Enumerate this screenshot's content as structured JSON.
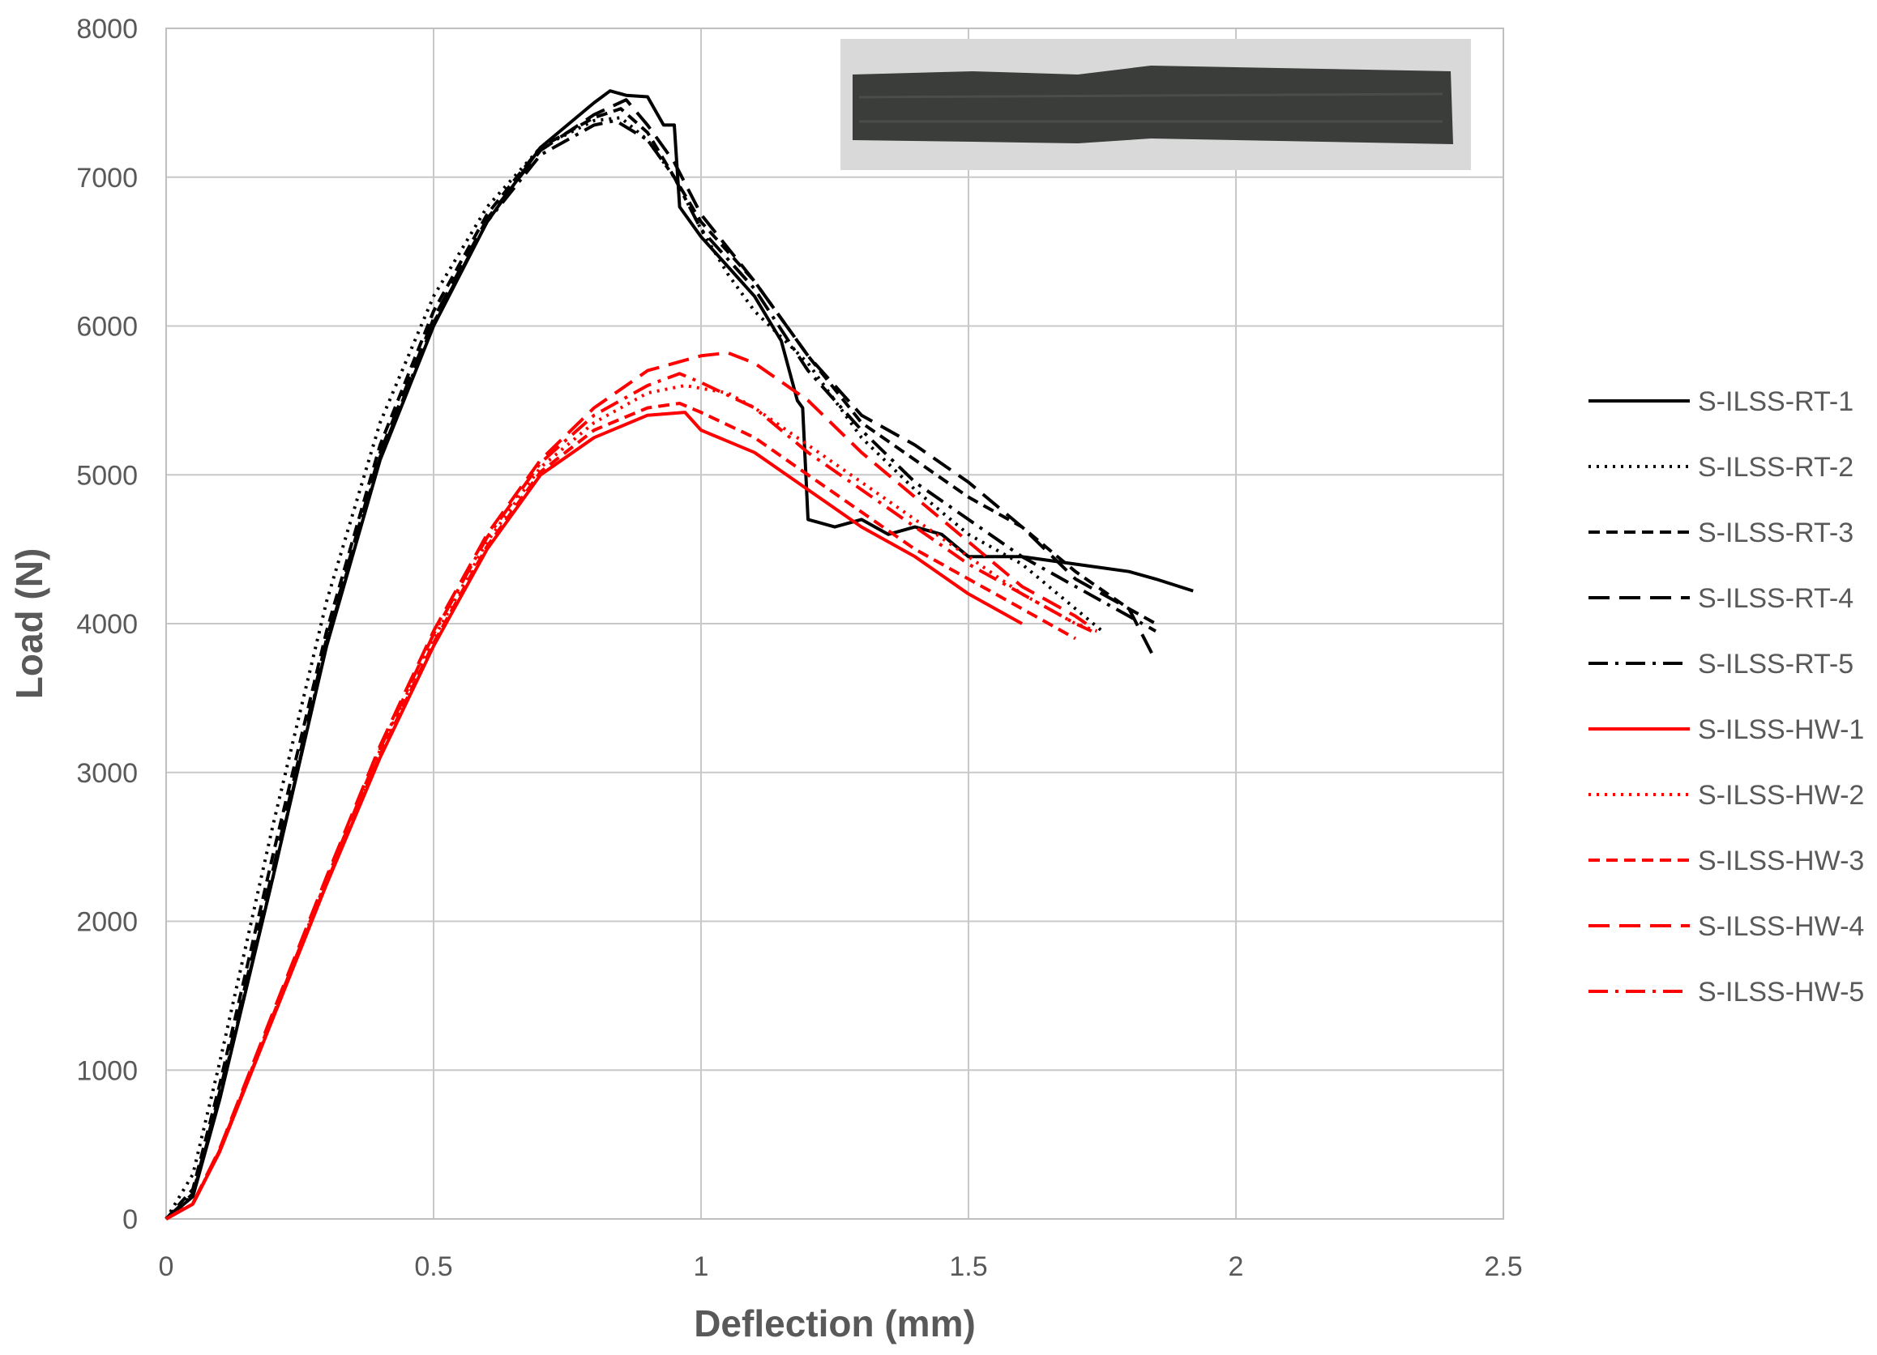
{
  "chart_data": {
    "type": "line",
    "title": "",
    "xlabel": "Deflection (mm)",
    "ylabel": "Load (N)",
    "xlim": [
      0,
      2.5
    ],
    "ylim": [
      0,
      8000
    ],
    "x_ticks": [
      "0",
      "0.5",
      "1",
      "1.5",
      "2",
      "2.5"
    ],
    "y_ticks": [
      "0",
      "1000",
      "2000",
      "3000",
      "4000",
      "5000",
      "6000",
      "7000",
      "8000"
    ],
    "grid": true,
    "legend_position": "right",
    "inset": "photo of specimen (dark rectangular strip)",
    "series": [
      {
        "name": "S-ILSS-RT-1",
        "color": "#000000",
        "dash": "solid",
        "points": [
          [
            0,
            0
          ],
          [
            0.05,
            150
          ],
          [
            0.1,
            800
          ],
          [
            0.2,
            2300
          ],
          [
            0.3,
            3850
          ],
          [
            0.4,
            5100
          ],
          [
            0.5,
            6000
          ],
          [
            0.6,
            6700
          ],
          [
            0.7,
            7200
          ],
          [
            0.8,
            7500
          ],
          [
            0.83,
            7580
          ],
          [
            0.86,
            7550
          ],
          [
            0.9,
            7540
          ],
          [
            0.93,
            7350
          ],
          [
            0.95,
            7350
          ],
          [
            0.96,
            6800
          ],
          [
            1.0,
            6600
          ],
          [
            1.05,
            6400
          ],
          [
            1.1,
            6200
          ],
          [
            1.15,
            5900
          ],
          [
            1.18,
            5500
          ],
          [
            1.19,
            5450
          ],
          [
            1.2,
            4700
          ],
          [
            1.25,
            4650
          ],
          [
            1.3,
            4700
          ],
          [
            1.35,
            4600
          ],
          [
            1.4,
            4650
          ],
          [
            1.45,
            4600
          ],
          [
            1.5,
            4450
          ],
          [
            1.6,
            4450
          ],
          [
            1.7,
            4400
          ],
          [
            1.8,
            4350
          ],
          [
            1.85,
            4300
          ],
          [
            1.92,
            4220
          ]
        ]
      },
      {
        "name": "S-ILSS-RT-2",
        "color": "#000000",
        "dash": "dotted",
        "points": [
          [
            0,
            0
          ],
          [
            0.05,
            300
          ],
          [
            0.1,
            1050
          ],
          [
            0.2,
            2650
          ],
          [
            0.3,
            4150
          ],
          [
            0.4,
            5350
          ],
          [
            0.5,
            6200
          ],
          [
            0.6,
            6800
          ],
          [
            0.7,
            7200
          ],
          [
            0.8,
            7380
          ],
          [
            0.85,
            7400
          ],
          [
            0.9,
            7250
          ],
          [
            0.95,
            7000
          ],
          [
            1.0,
            6650
          ],
          [
            1.05,
            6350
          ],
          [
            1.1,
            6100
          ],
          [
            1.2,
            5750
          ],
          [
            1.3,
            5250
          ],
          [
            1.4,
            4900
          ],
          [
            1.5,
            4600
          ],
          [
            1.6,
            4400
          ],
          [
            1.7,
            4100
          ],
          [
            1.75,
            3950
          ]
        ]
      },
      {
        "name": "S-ILSS-RT-3",
        "color": "#000000",
        "dash": "dashed",
        "points": [
          [
            0,
            0
          ],
          [
            0.05,
            200
          ],
          [
            0.1,
            900
          ],
          [
            0.2,
            2450
          ],
          [
            0.3,
            3950
          ],
          [
            0.4,
            5200
          ],
          [
            0.5,
            6100
          ],
          [
            0.6,
            6750
          ],
          [
            0.7,
            7200
          ],
          [
            0.8,
            7400
          ],
          [
            0.85,
            7460
          ],
          [
            0.9,
            7300
          ],
          [
            0.95,
            7000
          ],
          [
            1.0,
            6700
          ],
          [
            1.1,
            6300
          ],
          [
            1.2,
            5800
          ],
          [
            1.3,
            5350
          ],
          [
            1.4,
            5100
          ],
          [
            1.5,
            4850
          ],
          [
            1.6,
            4650
          ],
          [
            1.7,
            4350
          ],
          [
            1.8,
            4100
          ],
          [
            1.85,
            4000
          ]
        ]
      },
      {
        "name": "S-ILSS-RT-4",
        "color": "#000000",
        "dash": "longdash",
        "points": [
          [
            0,
            0
          ],
          [
            0.05,
            170
          ],
          [
            0.1,
            850
          ],
          [
            0.2,
            2350
          ],
          [
            0.3,
            3900
          ],
          [
            0.4,
            5150
          ],
          [
            0.5,
            6050
          ],
          [
            0.6,
            6720
          ],
          [
            0.7,
            7180
          ],
          [
            0.8,
            7420
          ],
          [
            0.86,
            7520
          ],
          [
            0.9,
            7350
          ],
          [
            0.95,
            7100
          ],
          [
            1.0,
            6750
          ],
          [
            1.1,
            6300
          ],
          [
            1.2,
            5800
          ],
          [
            1.3,
            5400
          ],
          [
            1.4,
            5200
          ],
          [
            1.5,
            4950
          ],
          [
            1.6,
            4650
          ],
          [
            1.7,
            4300
          ],
          [
            1.8,
            4100
          ],
          [
            1.85,
            3750
          ]
        ]
      },
      {
        "name": "S-ILSS-RT-5",
        "color": "#000000",
        "dash": "dashdot",
        "points": [
          [
            0,
            0
          ],
          [
            0.05,
            160
          ],
          [
            0.1,
            820
          ],
          [
            0.2,
            2300
          ],
          [
            0.3,
            3870
          ],
          [
            0.4,
            5120
          ],
          [
            0.5,
            6020
          ],
          [
            0.6,
            6700
          ],
          [
            0.7,
            7150
          ],
          [
            0.8,
            7350
          ],
          [
            0.84,
            7380
          ],
          [
            0.9,
            7250
          ],
          [
            0.95,
            7000
          ],
          [
            1.0,
            6650
          ],
          [
            1.1,
            6250
          ],
          [
            1.2,
            5700
          ],
          [
            1.3,
            5300
          ],
          [
            1.4,
            4950
          ],
          [
            1.5,
            4700
          ],
          [
            1.6,
            4450
          ],
          [
            1.7,
            4250
          ],
          [
            1.8,
            4050
          ],
          [
            1.85,
            3950
          ]
        ]
      },
      {
        "name": "S-ILSS-HW-1",
        "color": "#ff0000",
        "dash": "solid",
        "points": [
          [
            0,
            0
          ],
          [
            0.05,
            100
          ],
          [
            0.1,
            450
          ],
          [
            0.2,
            1350
          ],
          [
            0.3,
            2250
          ],
          [
            0.4,
            3100
          ],
          [
            0.5,
            3850
          ],
          [
            0.6,
            4500
          ],
          [
            0.7,
            5000
          ],
          [
            0.8,
            5250
          ],
          [
            0.9,
            5400
          ],
          [
            0.97,
            5420
          ],
          [
            1.0,
            5300
          ],
          [
            1.1,
            5150
          ],
          [
            1.2,
            4900
          ],
          [
            1.3,
            4650
          ],
          [
            1.4,
            4450
          ],
          [
            1.5,
            4200
          ],
          [
            1.6,
            4000
          ]
        ]
      },
      {
        "name": "S-ILSS-HW-2",
        "color": "#ff0000",
        "dash": "dotted",
        "points": [
          [
            0,
            0
          ],
          [
            0.05,
            100
          ],
          [
            0.1,
            460
          ],
          [
            0.2,
            1370
          ],
          [
            0.3,
            2280
          ],
          [
            0.4,
            3150
          ],
          [
            0.5,
            3900
          ],
          [
            0.6,
            4550
          ],
          [
            0.7,
            5050
          ],
          [
            0.8,
            5350
          ],
          [
            0.9,
            5550
          ],
          [
            0.97,
            5600
          ],
          [
            1.05,
            5550
          ],
          [
            1.1,
            5450
          ],
          [
            1.2,
            5200
          ],
          [
            1.3,
            4950
          ],
          [
            1.4,
            4700
          ],
          [
            1.5,
            4450
          ],
          [
            1.6,
            4200
          ],
          [
            1.7,
            4000
          ],
          [
            1.74,
            3950
          ]
        ]
      },
      {
        "name": "S-ILSS-HW-3",
        "color": "#ff0000",
        "dash": "dashed",
        "points": [
          [
            0,
            0
          ],
          [
            0.05,
            100
          ],
          [
            0.1,
            455
          ],
          [
            0.2,
            1360
          ],
          [
            0.3,
            2260
          ],
          [
            0.4,
            3120
          ],
          [
            0.5,
            3870
          ],
          [
            0.6,
            4520
          ],
          [
            0.7,
            5020
          ],
          [
            0.8,
            5300
          ],
          [
            0.9,
            5450
          ],
          [
            0.96,
            5480
          ],
          [
            1.0,
            5420
          ],
          [
            1.1,
            5250
          ],
          [
            1.2,
            5000
          ],
          [
            1.3,
            4750
          ],
          [
            1.4,
            4500
          ],
          [
            1.5,
            4300
          ],
          [
            1.6,
            4100
          ],
          [
            1.7,
            3900
          ]
        ]
      },
      {
        "name": "S-ILSS-HW-4",
        "color": "#ff0000",
        "dash": "longdash",
        "points": [
          [
            0,
            0
          ],
          [
            0.05,
            105
          ],
          [
            0.1,
            470
          ],
          [
            0.2,
            1390
          ],
          [
            0.3,
            2300
          ],
          [
            0.4,
            3180
          ],
          [
            0.5,
            3950
          ],
          [
            0.6,
            4600
          ],
          [
            0.7,
            5100
          ],
          [
            0.8,
            5450
          ],
          [
            0.9,
            5700
          ],
          [
            1.0,
            5800
          ],
          [
            1.05,
            5820
          ],
          [
            1.1,
            5750
          ],
          [
            1.2,
            5500
          ],
          [
            1.3,
            5150
          ],
          [
            1.4,
            4850
          ],
          [
            1.5,
            4550
          ],
          [
            1.6,
            4250
          ],
          [
            1.7,
            4050
          ],
          [
            1.72,
            4000
          ]
        ]
      },
      {
        "name": "S-ILSS-HW-5",
        "color": "#ff0000",
        "dash": "dashdot",
        "points": [
          [
            0,
            0
          ],
          [
            0.05,
            100
          ],
          [
            0.1,
            460
          ],
          [
            0.2,
            1370
          ],
          [
            0.3,
            2280
          ],
          [
            0.4,
            3160
          ],
          [
            0.5,
            3930
          ],
          [
            0.6,
            4580
          ],
          [
            0.7,
            5080
          ],
          [
            0.8,
            5400
          ],
          [
            0.9,
            5600
          ],
          [
            0.96,
            5680
          ],
          [
            1.0,
            5620
          ],
          [
            1.1,
            5450
          ],
          [
            1.2,
            5150
          ],
          [
            1.3,
            4900
          ],
          [
            1.4,
            4650
          ],
          [
            1.5,
            4400
          ],
          [
            1.6,
            4200
          ],
          [
            1.7,
            4000
          ],
          [
            1.73,
            3950
          ]
        ]
      }
    ]
  }
}
